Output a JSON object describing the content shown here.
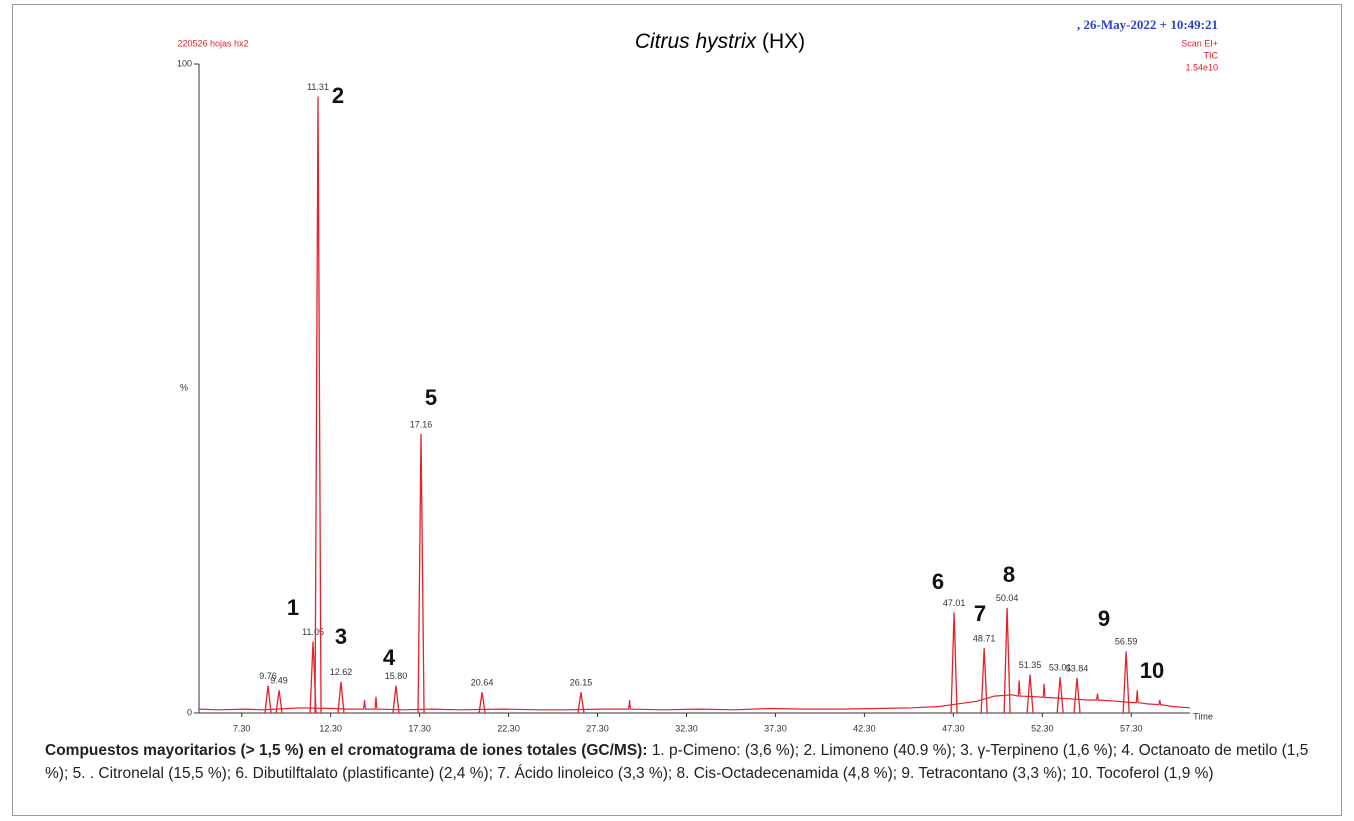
{
  "chart_data": {
    "type": "chromatogram",
    "title_italic": "Citrus hystrix",
    "title_rest": "(HX)",
    "sample": "220526 hojas hx2",
    "date": ", 26-May-2022 + 10:49:21",
    "scan": "Scan EI+",
    "trace_type": "TIC",
    "intensity": "1.54e10",
    "x_label": "Time",
    "y_label": "%",
    "color": "#e8202a",
    "xlim": [
      4.9,
      60.6
    ],
    "ylim": [
      0,
      100
    ],
    "xticks": [
      {
        "value": 7.3,
        "label": "7.30"
      },
      {
        "value": 12.3,
        "label": "12.30"
      },
      {
        "value": 17.3,
        "label": "17.30"
      },
      {
        "value": 22.3,
        "label": "22.30"
      },
      {
        "value": 27.3,
        "label": "27.30"
      },
      {
        "value": 32.3,
        "label": "32.30"
      },
      {
        "value": 37.3,
        "label": "37.30"
      },
      {
        "value": 42.3,
        "label": "42.30"
      },
      {
        "value": 47.3,
        "label": "47.30"
      },
      {
        "value": 52.3,
        "label": "52.30"
      },
      {
        "value": 57.3,
        "label": "57.30"
      }
    ],
    "yticks": [
      0,
      100
    ],
    "x": [
      4.9,
      6.0,
      7.5,
      8.5,
      9.9,
      10.6,
      12.4,
      13.2,
      14.15,
      14.2,
      14.25,
      14.8,
      14.85,
      14.9,
      16.4,
      18.0,
      19.5,
      22.0,
      24.0,
      25.5,
      27.5,
      29.05,
      29.1,
      29.15,
      31.0,
      33.0,
      35.0,
      37.0,
      39.0,
      41.0,
      43.0,
      45.0,
      46.5,
      47.8,
      48.6,
      49.6,
      50.6,
      50.95,
      51.0,
      51.05,
      52.0,
      52.35,
      52.4,
      52.45,
      53.8,
      54.8,
      55.35,
      55.4,
      55.45,
      56.5,
      57.35,
      57.58,
      57.63,
      57.68,
      58.2,
      58.85,
      58.9,
      58.95,
      59.6,
      60.6
    ],
    "values": [
      0.6,
      0.5,
      0.6,
      0.5,
      0.7,
      0.8,
      0.7,
      0.6,
      0.6,
      2.0,
      0.6,
      0.6,
      2.5,
      0.6,
      0.5,
      0.6,
      0.5,
      0.6,
      0.5,
      0.5,
      0.6,
      0.6,
      2.0,
      0.6,
      0.5,
      0.6,
      0.5,
      0.7,
      0.6,
      0.6,
      0.7,
      0.8,
      1.0,
      1.5,
      1.8,
      2.6,
      2.8,
      2.6,
      5.0,
      2.6,
      2.5,
      2.4,
      4.5,
      2.4,
      2.2,
      2.0,
      2.0,
      3.0,
      2.0,
      1.8,
      1.6,
      1.6,
      3.5,
      1.6,
      1.4,
      1.3,
      2.0,
      1.3,
      1.0,
      0.8
    ],
    "peaks": [
      {
        "label": "9.76",
        "x": 8.78,
        "y": 4.2
      },
      {
        "label": "9.49",
        "x": 9.4,
        "y": 3.5
      },
      {
        "label": "11.05",
        "x": 11.31,
        "y": 11
      },
      {
        "label": "11.31",
        "x": 11.59,
        "y": 95
      },
      {
        "label": "12.62",
        "x": 12.88,
        "y": 4.8
      },
      {
        "label": "15.80",
        "x": 15.97,
        "y": 4.2
      },
      {
        "label": "17.16",
        "x": 17.38,
        "y": 43
      },
      {
        "label": "20.64",
        "x": 20.81,
        "y": 3.2
      },
      {
        "label": "26.15",
        "x": 26.37,
        "y": 3.2
      },
      {
        "label": "47.01",
        "x": 47.34,
        "y": 15.5
      },
      {
        "label": "48.71",
        "x": 49.03,
        "y": 10
      },
      {
        "label": "50.04",
        "x": 50.32,
        "y": 16.2
      },
      {
        "label": "51.35",
        "x": 51.61,
        "y": 5.9
      },
      {
        "label": "53.01",
        "x": 53.3,
        "y": 5.5
      },
      {
        "label": "53.84",
        "x": 54.25,
        "y": 5.4
      },
      {
        "label": "56.59",
        "x": 57.01,
        "y": 9.5
      }
    ],
    "annotations": [
      "1",
      "2",
      "3",
      "4",
      "5",
      "6",
      "7",
      "8",
      "9",
      "10"
    ]
  },
  "caption": {
    "bold": "Compuestos mayoritarios (> 1,5 %) en el cromatograma de iones totales (GC/MS):",
    "items": [
      "1. p-Cimeno: (3,6 %);",
      "2. Limoneno (40.9 %);",
      "3. γ-Terpineno (1,6 %);",
      "4. Octanoato de metilo (1,5 %);",
      "5. . Citronelal (15,5 %);",
      "6. Dibutilftalato (plastificante) (2,4 %);",
      "7. Ácido linoleico (3,3 %);",
      "8. Cis-Octadecenamida (4,8 %);",
      "9. Tetracontano (3,3 %);",
      "10. Tocoferol (1,9 %)"
    ]
  }
}
